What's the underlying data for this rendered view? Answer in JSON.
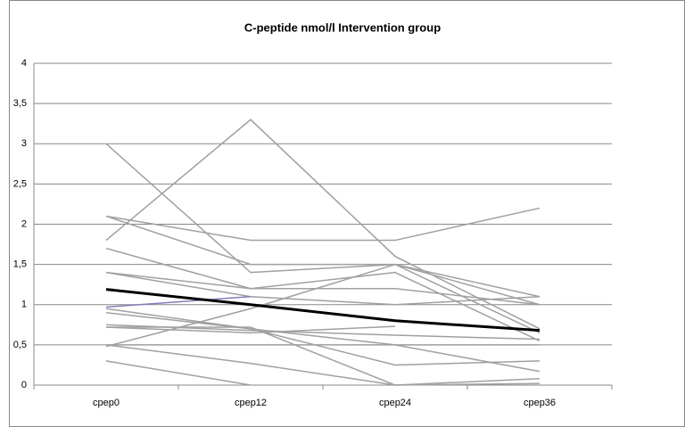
{
  "chart_data": {
    "type": "line",
    "title": "C-peptide nmol/l  Intervention group",
    "categories": [
      "cpep0",
      "cpep12",
      "cpep24",
      "cpep36"
    ],
    "ylim": [
      0,
      4
    ],
    "yticks": [
      0,
      {
        "value": 0.5,
        "label": "0,5"
      },
      1,
      {
        "value": 1.5,
        "label": "1,5"
      },
      2,
      {
        "value": 2.5,
        "label": "2,5"
      },
      3,
      {
        "value": 3.5,
        "label": "3,5"
      },
      4
    ],
    "grid": true,
    "series": [
      {
        "color": "#a0a0a0",
        "values": [
          3.0,
          1.4,
          1.5,
          1.1
        ]
      },
      {
        "color": "#a0a0a0",
        "values": [
          1.8,
          3.3,
          1.6,
          0.7
        ]
      },
      {
        "color": "#a0a0a0",
        "values": [
          2.1,
          1.8,
          1.8,
          2.2
        ]
      },
      {
        "color": "#a0a0a0",
        "values": [
          2.1,
          1.5,
          1.5,
          1.0
        ]
      },
      {
        "color": "#a0a0a0",
        "values": [
          1.7,
          1.2,
          1.2,
          1.0
        ]
      },
      {
        "color": "#a0a0a0",
        "values": [
          1.4,
          1.1,
          1.0,
          1.1
        ]
      },
      {
        "color": "#a0a0a0",
        "values": [
          1.4,
          1.2,
          1.4,
          0.55
        ]
      },
      {
        "color": "#8080b8",
        "values": [
          0.97,
          1.1,
          null,
          null
        ]
      },
      {
        "color": "#a0a0a0",
        "values": [
          0.95,
          0.7,
          0.5,
          0.17
        ]
      },
      {
        "color": "#a0a0a0",
        "values": [
          0.75,
          0.68,
          0.62,
          0.57
        ]
      },
      {
        "color": "#a0a0a0",
        "values": [
          0.72,
          0.65,
          0.73,
          null
        ]
      },
      {
        "color": "#a0a0a0",
        "values": [
          0.5,
          0.5,
          0.5,
          0.5
        ]
      },
      {
        "color": "#a0a0a0",
        "values": [
          0.48,
          0.95,
          1.5,
          0.65
        ]
      },
      {
        "color": "#a0a0a0",
        "values": [
          0.5,
          0.27,
          0.0,
          0.08
        ]
      },
      {
        "color": "#a0a0a0",
        "values": [
          0.3,
          0.0,
          null,
          null
        ]
      },
      {
        "color": "#a0a0a0",
        "values": [
          0.9,
          0.7,
          0.25,
          0.3
        ]
      },
      {
        "color": "#a0a0a0",
        "values": [
          0.72,
          0.72,
          0.0,
          0.02
        ]
      },
      {
        "color": "#000000",
        "values": [
          1.19,
          1.0,
          0.8,
          0.68
        ]
      }
    ]
  }
}
